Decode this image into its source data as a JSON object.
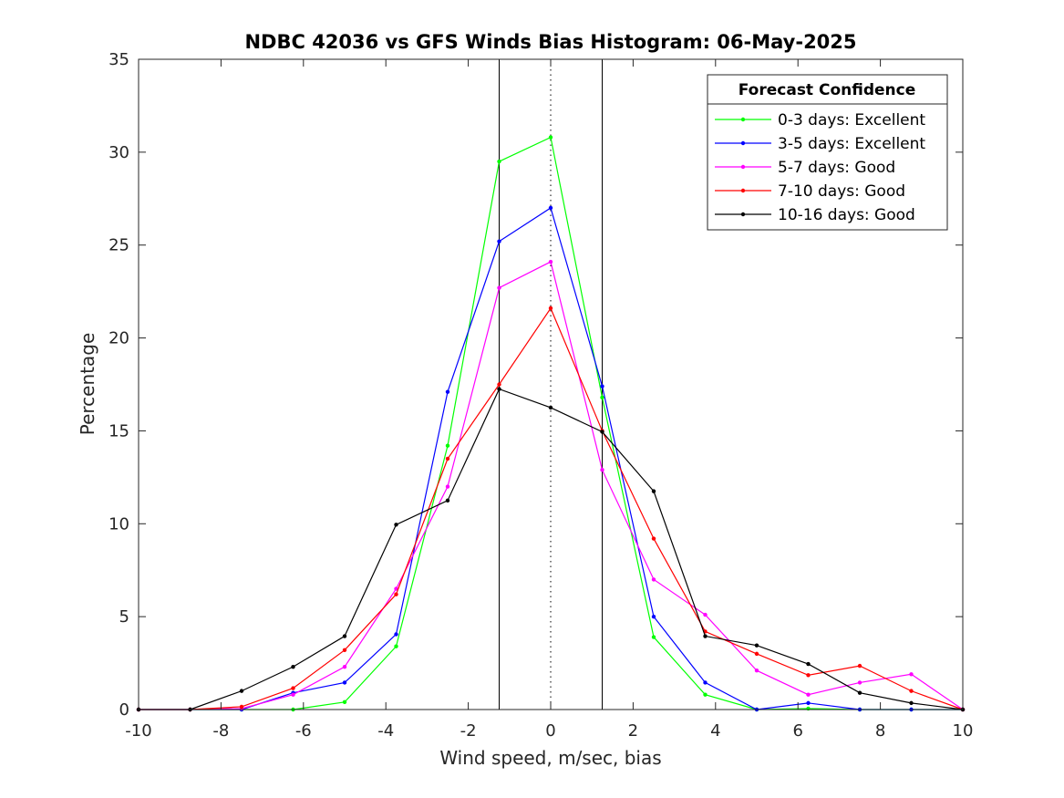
{
  "chart_data": {
    "type": "line",
    "title": "NDBC 42036 vs GFS Winds Bias Histogram: 06-May-2025",
    "xlabel": "Wind speed, m/sec, bias",
    "ylabel": "Percentage",
    "xlim": [
      -10,
      10
    ],
    "ylim": [
      0,
      35
    ],
    "xticks": [
      -10,
      -8,
      -6,
      -4,
      -2,
      0,
      2,
      4,
      6,
      8,
      10
    ],
    "yticks": [
      0,
      5,
      10,
      15,
      20,
      25,
      30,
      35
    ],
    "grid": false,
    "legend": {
      "title": "Forecast Confidence",
      "placement": "top-right"
    },
    "reference_lines": {
      "solid_x": [
        -1.25,
        1.25
      ],
      "dotted_x": [
        0
      ]
    },
    "x": [
      -10,
      -8.75,
      -7.5,
      -6.25,
      -5,
      -3.75,
      -2.5,
      -1.25,
      0,
      1.25,
      2.5,
      3.75,
      5,
      6.25,
      7.5,
      8.75,
      10
    ],
    "series": [
      {
        "name": "0-3 days: Excellent",
        "color": "#00ff00",
        "values": [
          0,
          0,
          0,
          0,
          0.4,
          3.4,
          14.2,
          29.5,
          30.8,
          16.8,
          3.9,
          0.8,
          0,
          0.05,
          0,
          0,
          0
        ]
      },
      {
        "name": "3-5 days: Excellent",
        "color": "#0000ff",
        "values": [
          0,
          0,
          0,
          0.9,
          1.45,
          4.05,
          17.1,
          25.2,
          27.0,
          17.4,
          5.0,
          1.45,
          0,
          0.35,
          0,
          0,
          0
        ]
      },
      {
        "name": "5-7 days: Good",
        "color": "#ff00ff",
        "values": [
          0,
          0,
          0.05,
          0.8,
          2.3,
          6.5,
          12.0,
          22.7,
          24.1,
          12.9,
          7.0,
          5.1,
          2.1,
          0.8,
          1.45,
          1.9,
          0
        ]
      },
      {
        "name": "7-10 days: Good",
        "color": "#ff0000",
        "values": [
          0,
          0,
          0.15,
          1.15,
          3.2,
          6.2,
          13.5,
          17.5,
          21.6,
          15.0,
          9.2,
          4.2,
          3.0,
          1.85,
          2.35,
          1.0,
          0
        ]
      },
      {
        "name": "10-16 days: Good",
        "color": "#000000",
        "values": [
          0,
          0,
          1.0,
          2.3,
          3.95,
          9.95,
          11.25,
          17.25,
          16.25,
          14.95,
          11.75,
          3.95,
          3.45,
          2.45,
          0.9,
          0.35,
          0
        ]
      }
    ]
  }
}
